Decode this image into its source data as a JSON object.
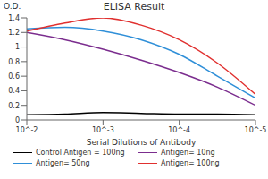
{
  "chart_data": {
    "type": "line",
    "title": "ELISA Result",
    "y_label": "O.D.",
    "x_label": "Serial Dilutions of Antibody",
    "x": [
      0.01,
      0.00316,
      0.001,
      0.000316,
      0.0001,
      3.16e-05,
      1e-05
    ],
    "series": [
      {
        "name": "Control Antigen = 100ng",
        "color": "#000000",
        "values": [
          0.07,
          0.08,
          0.1,
          0.09,
          0.08,
          0.08,
          0.07
        ]
      },
      {
        "name": "Antigen= 10ng",
        "color": "#7b2d8e",
        "values": [
          1.2,
          1.1,
          0.97,
          0.82,
          0.65,
          0.45,
          0.2
        ]
      },
      {
        "name": "Antigen= 50ng",
        "color": "#2f8fd8",
        "values": [
          1.25,
          1.27,
          1.22,
          1.1,
          0.9,
          0.6,
          0.3
        ]
      },
      {
        "name": "Antigen= 100ng",
        "color": "#e0302f",
        "values": [
          1.22,
          1.33,
          1.4,
          1.3,
          1.1,
          0.78,
          0.35
        ]
      }
    ],
    "log": "x",
    "xlim": [
      0.01,
      1e-05
    ],
    "xticks": [
      {
        "value": 0.01,
        "label": "10^-2"
      },
      {
        "value": 0.001,
        "label": "10^-3"
      },
      {
        "value": 0.0001,
        "label": "10^-4"
      },
      {
        "value": 1e-05,
        "label": "10^-5"
      }
    ],
    "ylim": [
      0,
      1.4
    ],
    "yticks": [
      0,
      0.2,
      0.4,
      0.6,
      0.8,
      1,
      1.2,
      1.4
    ],
    "grid": false
  }
}
